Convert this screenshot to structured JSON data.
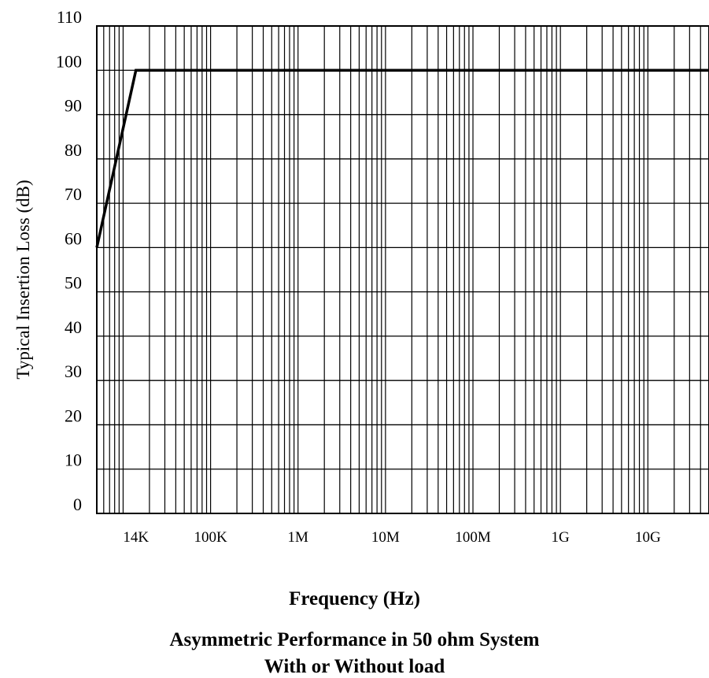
{
  "chart_data": {
    "type": "line",
    "xlabel": "Frequency (Hz)",
    "ylabel": "Typical Insertion Loss (dB)",
    "subtitle_lines": [
      "Asymmetric Performance in 50 ohm System",
      "With or Without load"
    ],
    "x_scale": "log",
    "xlim": [
      5000,
      50000000000
    ],
    "ylim": [
      0,
      110
    ],
    "y_ticks": [
      0,
      10,
      20,
      30,
      40,
      50,
      60,
      70,
      80,
      90,
      100,
      110
    ],
    "x_tick_labels": [
      {
        "label": "14K",
        "value": 14000
      },
      {
        "label": "100K",
        "value": 100000
      },
      {
        "label": "1M",
        "value": 1000000
      },
      {
        "label": "10M",
        "value": 10000000
      },
      {
        "label": "100M",
        "value": 100000000
      },
      {
        "label": "1G",
        "value": 1000000000
      },
      {
        "label": "10G",
        "value": 10000000000
      }
    ],
    "grid": true,
    "series": [
      {
        "x": [
          5000,
          14000,
          50000000000
        ],
        "y": [
          60,
          100,
          100
        ]
      }
    ]
  }
}
